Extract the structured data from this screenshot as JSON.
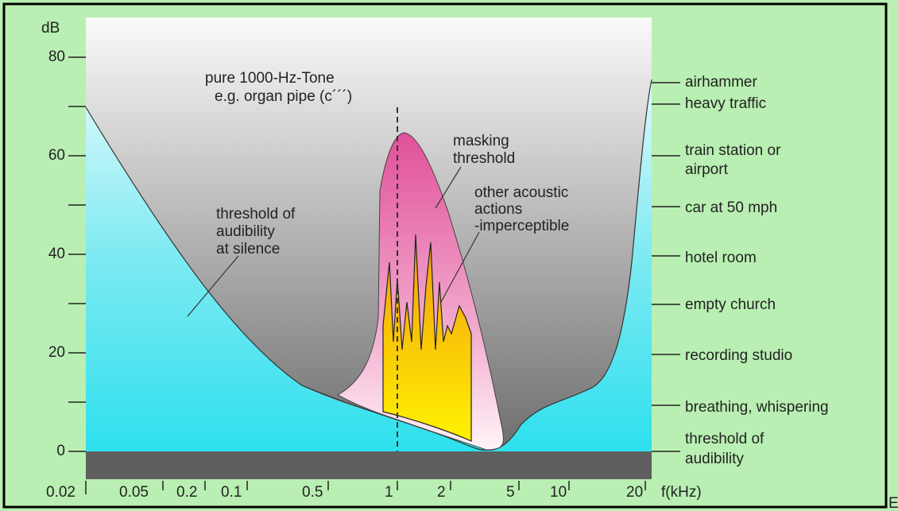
{
  "figure": {
    "y_unit": "dB",
    "y_labels": [
      "80",
      "60",
      "40",
      "20",
      "0"
    ],
    "x_labels": [
      "0.02",
      "0.05",
      "0.2",
      "0.1",
      "0.5",
      "1",
      "2",
      "5",
      "10",
      "20",
      "f(kHz)"
    ],
    "annotations": {
      "tone": [
        "pure 1000-Hz-Tone",
        "e.g. organ pipe (c´´´)"
      ],
      "masking": [
        "masking",
        "threshold"
      ],
      "other": [
        "other acoustic",
        "actions",
        "-imperceptible"
      ],
      "silence": [
        "threshold of",
        "audibility",
        "at silence"
      ]
    },
    "right_labels": [
      "airhammer",
      "heavy traffic",
      "train station or",
      "airport",
      "car at 50 mph",
      "hotel room",
      "empty church",
      "recording studio",
      "breathing, whispering",
      "threshold of",
      "audibility"
    ],
    "edge_text": "E"
  }
}
